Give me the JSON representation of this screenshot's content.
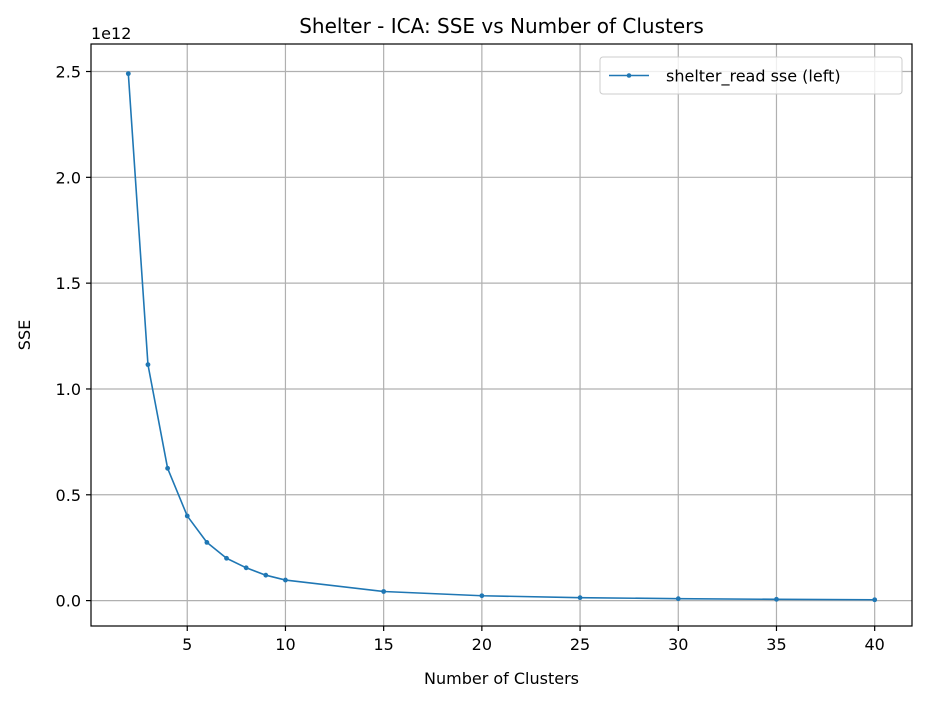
{
  "chart_data": {
    "type": "line",
    "title": "Shelter - ICA: SSE vs Number of Clusters",
    "xlabel": "Number of Clusters",
    "ylabel": "SSE",
    "y_offset_label": "1e12",
    "y_scale_factor": 1000000000000.0,
    "xlim": [
      0.1,
      41.9
    ],
    "ylim": [
      -0.12,
      2.63
    ],
    "x_ticks": [
      5,
      10,
      15,
      20,
      25,
      30,
      35,
      40
    ],
    "y_ticks": [
      0.0,
      0.5,
      1.0,
      1.5,
      2.0,
      2.5
    ],
    "y_tick_labels": [
      "0.0",
      "0.5",
      "1.0",
      "1.5",
      "2.0",
      "2.5"
    ],
    "grid": true,
    "legend_position": "top-right",
    "series": [
      {
        "name": "shelter_read sse (left)",
        "color": "#1f77b4",
        "x": [
          2,
          3,
          4,
          5,
          6,
          7,
          8,
          9,
          10,
          15,
          20,
          25,
          30,
          35,
          40
        ],
        "y": [
          2.49,
          1.115,
          0.625,
          0.4,
          0.275,
          0.2,
          0.155,
          0.12,
          0.097,
          0.043,
          0.023,
          0.014,
          0.009,
          0.006,
          0.004
        ]
      }
    ]
  }
}
